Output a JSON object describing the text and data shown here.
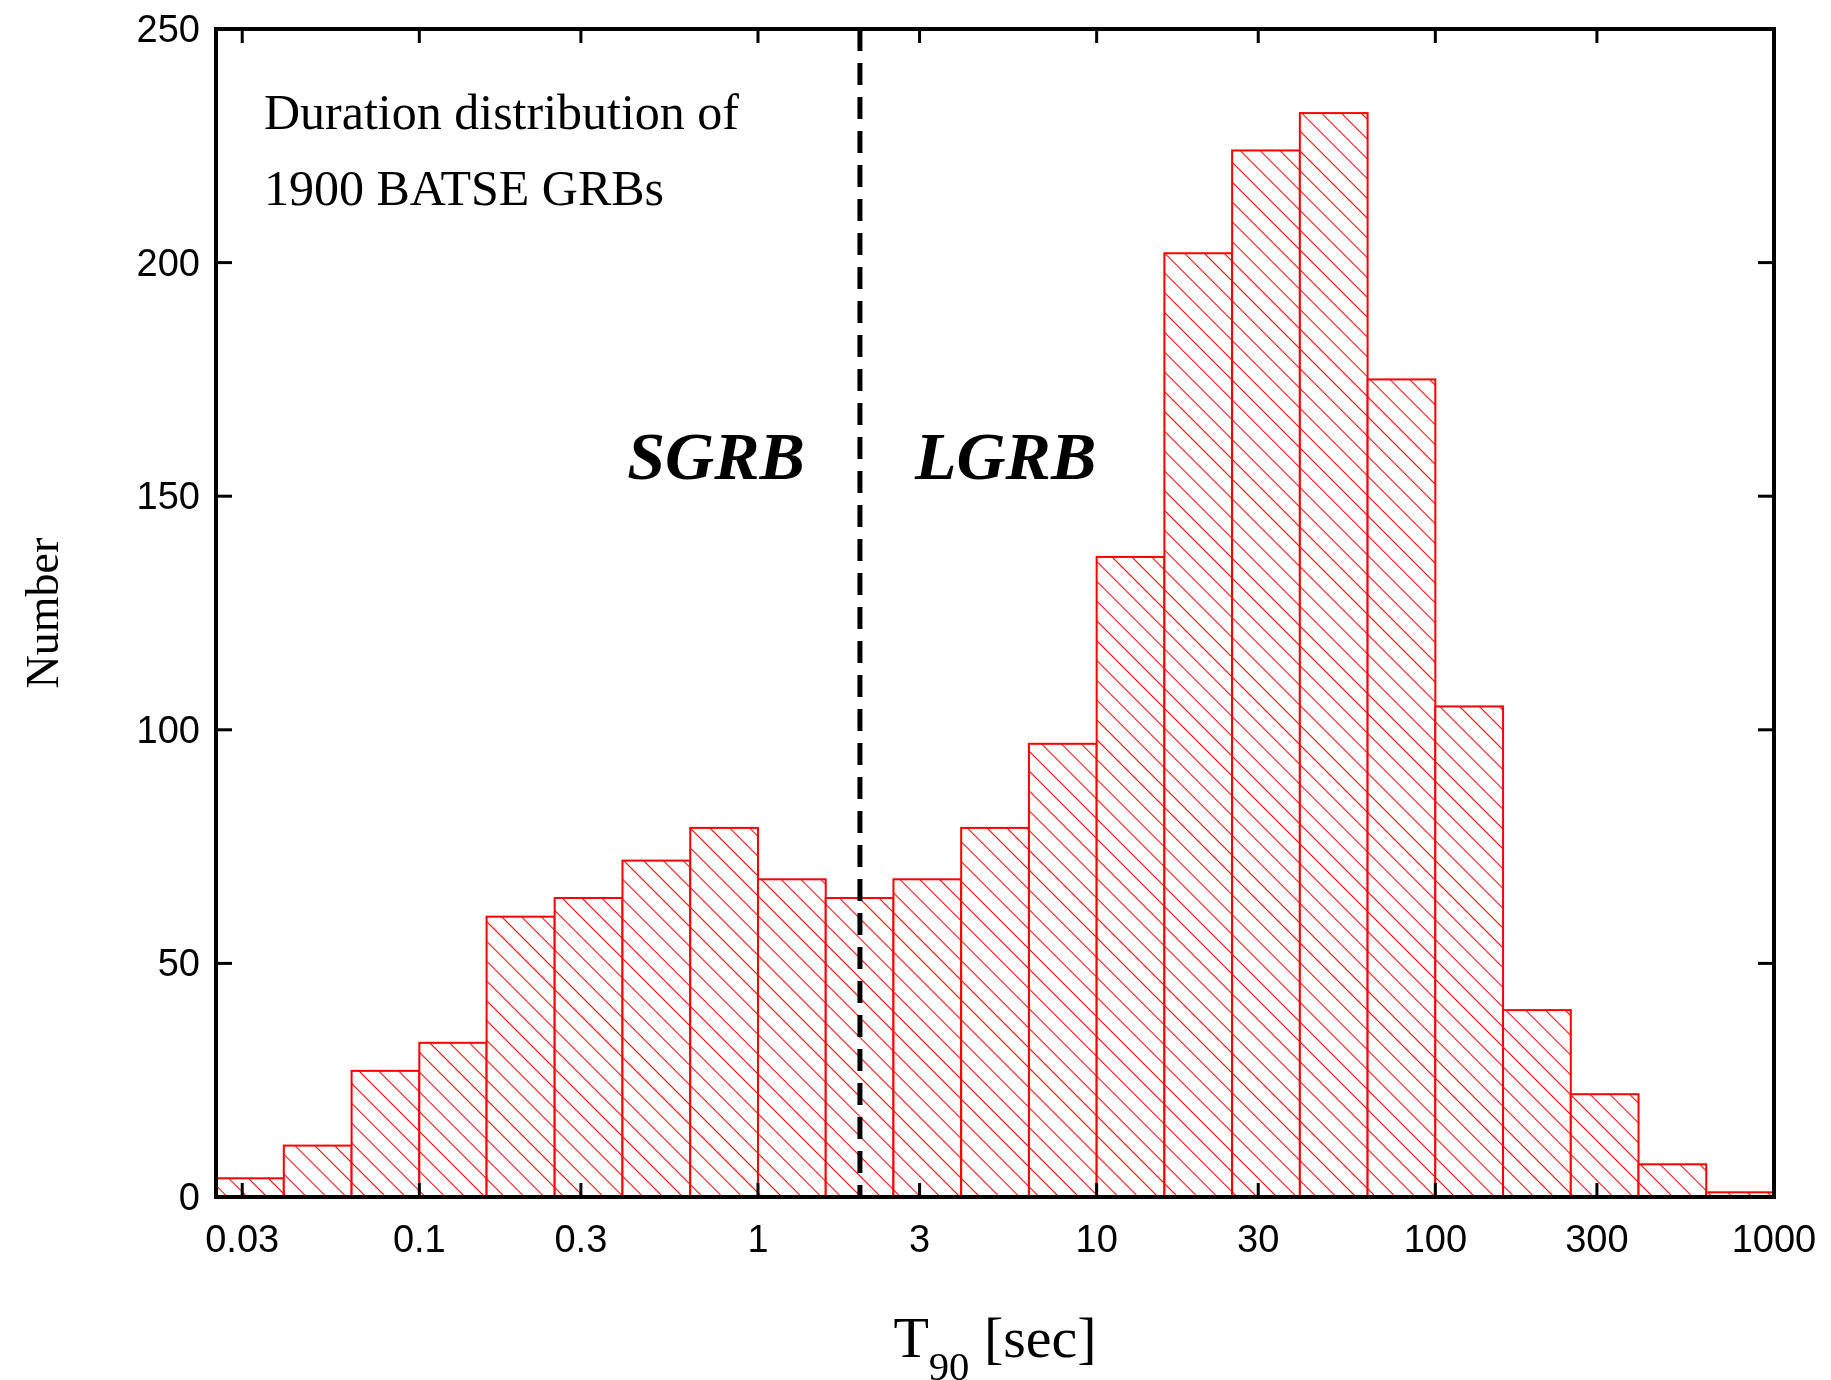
{
  "chart_data": {
    "type": "histogram",
    "xlabel": "T$_{90}$  [sec]",
    "ylabel": "Number",
    "bins": [
      0.0251,
      0.0398,
      0.0631,
      0.1,
      0.158,
      0.251,
      0.398,
      0.631,
      1,
      1.585,
      2.512,
      3.981,
      6.31,
      10,
      15.85,
      25.12,
      39.81,
      63.1,
      100,
      158.5,
      251.2,
      398.1,
      631,
      1000
    ],
    "values": [
      4,
      11,
      27,
      33,
      60,
      64,
      72,
      79,
      68,
      64,
      68,
      79,
      97,
      137,
      202,
      224,
      232,
      175,
      105,
      40,
      22,
      7,
      1
    ],
    "color": "#ff0000",
    "log": "x",
    "xlim": [
      0.0251,
      1000
    ],
    "xticks": [
      0.03,
      0.1,
      0.3,
      1,
      3,
      10,
      30,
      100,
      300,
      1000
    ],
    "ylim": [
      0,
      250
    ],
    "yticks": [
      0,
      50,
      100,
      150,
      200,
      250
    ],
    "grid": false,
    "ref_lines": [
      {
        "axis": "x",
        "value": 2,
        "label": null,
        "color": "#000000",
        "line_style": "dashed"
      }
    ],
    "annotations": [
      "Duration distribution of\n1900 BATSE GRBs",
      "SGRB",
      "LGRB"
    ]
  }
}
